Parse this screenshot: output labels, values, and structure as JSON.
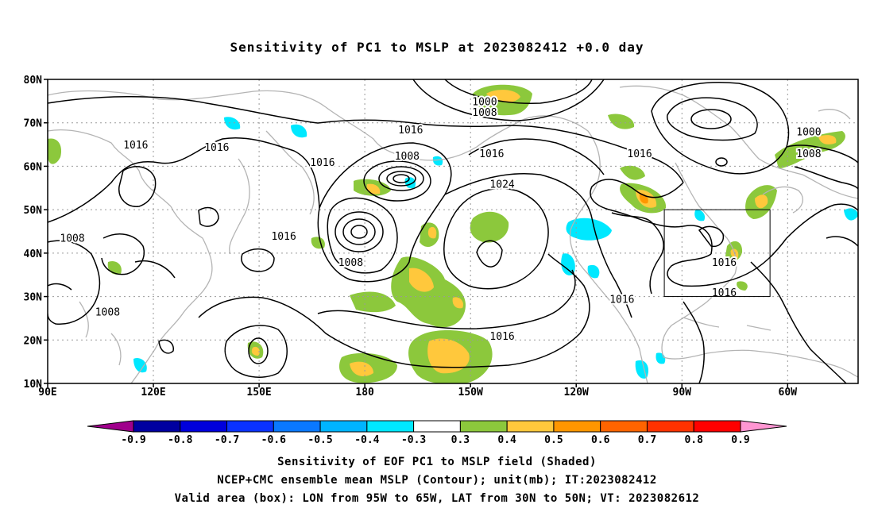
{
  "title": "Sensitivity of PC1 to MSLP at 2023082412 +0.0 day",
  "captions": {
    "line1": "Sensitivity of EOF PC1 to MSLP field (Shaded)",
    "line2": "NCEP+CMC ensemble mean MSLP (Contour); unit(mb); IT:2023082412",
    "line3": "Valid area (box): LON from 95W to 65W, LAT from 30N to 50N; VT: 2023082612"
  },
  "map": {
    "lon_range": [
      90,
      320
    ],
    "lat_range": [
      10,
      80
    ],
    "lat_ticks": [
      {
        "lat": 80,
        "label": "80N"
      },
      {
        "lat": 70,
        "label": "70N"
      },
      {
        "lat": 60,
        "label": "60N"
      },
      {
        "lat": 50,
        "label": "50N"
      },
      {
        "lat": 40,
        "label": "40N"
      },
      {
        "lat": 30,
        "label": "30N"
      },
      {
        "lat": 20,
        "label": "20N"
      },
      {
        "lat": 10,
        "label": "10N"
      }
    ],
    "lon_ticks": [
      {
        "lon": 90,
        "label": "90E"
      },
      {
        "lon": 120,
        "label": "120E"
      },
      {
        "lon": 150,
        "label": "150E"
      },
      {
        "lon": 180,
        "label": "180"
      },
      {
        "lon": 210,
        "label": "150W"
      },
      {
        "lon": 240,
        "label": "120W"
      },
      {
        "lon": 270,
        "label": "90W"
      },
      {
        "lon": 300,
        "label": "60W"
      }
    ],
    "valid_box": {
      "lon_min": 265,
      "lon_max": 295,
      "lat_min": 30,
      "lat_max": 50
    },
    "contour_labels": [
      {
        "lon": 214,
        "lat": 75,
        "text": "1000"
      },
      {
        "lon": 214,
        "lat": 72.5,
        "text": "1008"
      },
      {
        "lon": 306,
        "lat": 68,
        "text": "1000"
      },
      {
        "lon": 306,
        "lat": 63,
        "text": "1008"
      },
      {
        "lon": 193,
        "lat": 68.5,
        "text": "1016"
      },
      {
        "lon": 216,
        "lat": 63,
        "text": "1016"
      },
      {
        "lon": 192,
        "lat": 62.5,
        "text": "1008"
      },
      {
        "lon": 219,
        "lat": 56,
        "text": "1024"
      },
      {
        "lon": 258,
        "lat": 63,
        "text": "1016"
      },
      {
        "lon": 115,
        "lat": 65,
        "text": "1016"
      },
      {
        "lon": 138,
        "lat": 64.5,
        "text": "1016"
      },
      {
        "lon": 168,
        "lat": 61,
        "text": "1016"
      },
      {
        "lon": 157,
        "lat": 44,
        "text": "1016"
      },
      {
        "lon": 176,
        "lat": 38,
        "text": "1008"
      },
      {
        "lon": 97,
        "lat": 43.5,
        "text": "1008"
      },
      {
        "lon": 107,
        "lat": 26.5,
        "text": "1008"
      },
      {
        "lon": 219,
        "lat": 21,
        "text": "1016"
      },
      {
        "lon": 253,
        "lat": 29.5,
        "text": "1016"
      },
      {
        "lon": 282,
        "lat": 38,
        "text": "1016"
      },
      {
        "lon": 282,
        "lat": 31,
        "text": "1016"
      }
    ]
  },
  "colorbar": {
    "boundaries": [
      "-0.9",
      "-0.8",
      "-0.7",
      "-0.6",
      "-0.5",
      "-0.4",
      "-0.3",
      "0.3",
      "0.4",
      "0.5",
      "0.6",
      "0.7",
      "0.8",
      "0.9"
    ],
    "colors": [
      "#a0008c",
      "#0000a0",
      "#0000dc",
      "#0a32ff",
      "#0a78ff",
      "#00b4ff",
      "#00e8ff",
      "#ffffff",
      "#8cc83c",
      "#ffc83c",
      "#ff9600",
      "#ff6400",
      "#ff3200",
      "#ff0000",
      "#ff96d2"
    ]
  },
  "colors": {
    "coastline": "#b4b4b4",
    "contour": "#000000",
    "gridline": "#999999"
  }
}
